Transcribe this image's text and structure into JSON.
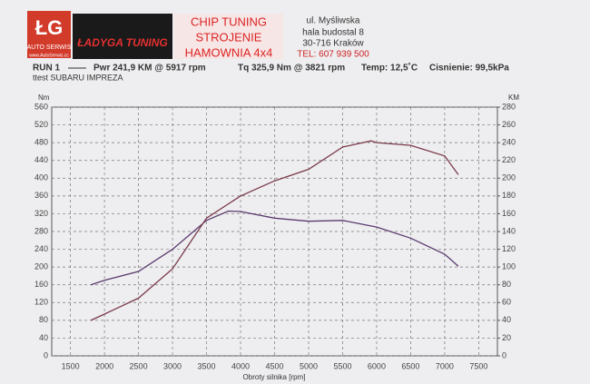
{
  "header": {
    "logo": "ŁG",
    "logo_sub": "AUTO SERWIS",
    "logo_url": "www.AutoSerwis.cc",
    "brand": "ŁADYGA TUNING",
    "services": [
      "CHIP TUNING",
      "STROJENIE",
      "HAMOWNIA 4x4"
    ],
    "address": [
      "ul. Myśliwska",
      "hala budostal 8",
      "30-716 Kraków",
      "TEL: 607 939 500"
    ]
  },
  "info": {
    "run": "RUN 1",
    "pwr": "Pwr 241,9 KM @ 5917 rpm",
    "tq": "Tq 325,9 Nm @ 3821 rpm",
    "temp": "Temp: 12,5˚C",
    "pressure": "Cisnienie: 99,5kPa",
    "test": "ttest SUBARU IMPREZA"
  },
  "chart_data": {
    "type": "line",
    "x_label": "Obroty silnika [rpm]",
    "y_label": "Nm",
    "y2_label": "KM",
    "xlim": [
      1225,
      7775
    ],
    "xticks": [
      1500,
      2000,
      2500,
      3000,
      3500,
      4000,
      4500,
      5000,
      5500,
      6000,
      6500,
      7000,
      7500
    ],
    "ylim": [
      0,
      560
    ],
    "yticks": [
      0,
      40,
      80,
      120,
      160,
      200,
      240,
      280,
      320,
      360,
      400,
      440,
      480,
      520,
      560
    ],
    "y2lim": [
      0,
      280
    ],
    "y2ticks": [
      0,
      20,
      40,
      60,
      80,
      100,
      120,
      140,
      160,
      180,
      200,
      220,
      240,
      260,
      280
    ],
    "grid": true,
    "series": [
      {
        "name": "Tq",
        "color": "#5a3a6e",
        "x": [
          1800,
          2000,
          2500,
          3000,
          3500,
          3821,
          4000,
          4500,
          5000,
          5500,
          6000,
          6500,
          7000,
          7200
        ],
        "values": [
          160,
          170,
          190,
          240,
          305,
          326,
          325,
          310,
          303,
          305,
          290,
          265,
          229,
          202
        ]
      },
      {
        "name": "Pwr",
        "color": "#7a3a4a",
        "axis": "y2",
        "x": [
          1800,
          2000,
          2500,
          3000,
          3500,
          4000,
          4500,
          5000,
          5500,
          5917,
          6000,
          6500,
          7000,
          7200
        ],
        "values": [
          40,
          47,
          65,
          98,
          155,
          180,
          197,
          210,
          235,
          242,
          240,
          237,
          225,
          204
        ]
      }
    ]
  }
}
